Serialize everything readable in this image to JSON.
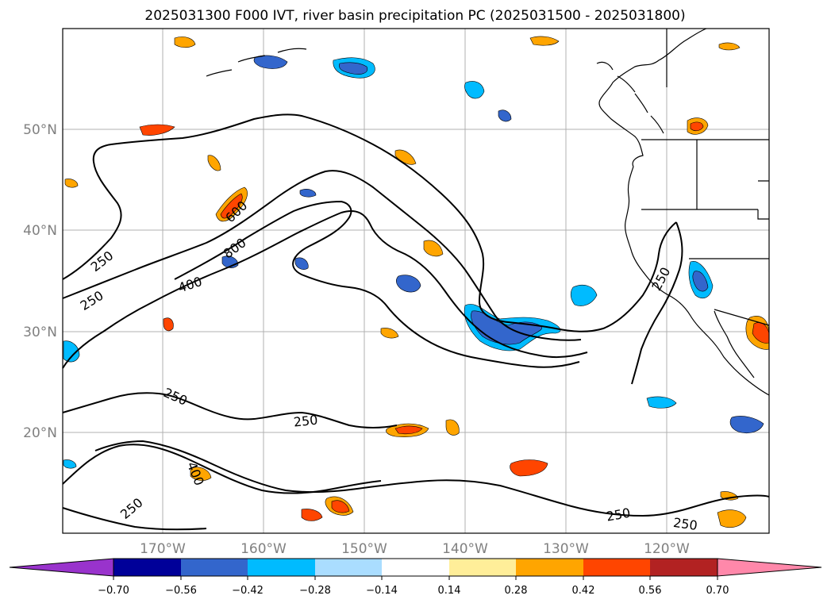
{
  "title": "2025031300 F000 IVT, river basin precipitation PC (2025031500 - 2025031800)",
  "map": {
    "lat_labels": [
      "50°N",
      "40°N",
      "30°N",
      "20°N"
    ],
    "lon_labels": [
      "170°W",
      "160°W",
      "150°W",
      "140°W",
      "130°W",
      "120°W"
    ],
    "gridlines": true,
    "contour_labels": [
      "250",
      "250",
      "400",
      "800",
      "600",
      "250",
      "400",
      "250",
      "250",
      "250",
      "250",
      "250"
    ]
  },
  "colorbar": {
    "extend": "both",
    "colors": [
      "#9933cc",
      "#000099",
      "#3366cc",
      "#00bbff",
      "#aaddff",
      "#ffffff",
      "#ffee99",
      "#ffa500",
      "#ff4500",
      "#b22222",
      "#ff88aa"
    ],
    "ticks": [
      "−0.70",
      "−0.56",
      "−0.42",
      "−0.28",
      "−0.14",
      "0.14",
      "0.28",
      "0.42",
      "0.56",
      "0.70"
    ]
  }
}
